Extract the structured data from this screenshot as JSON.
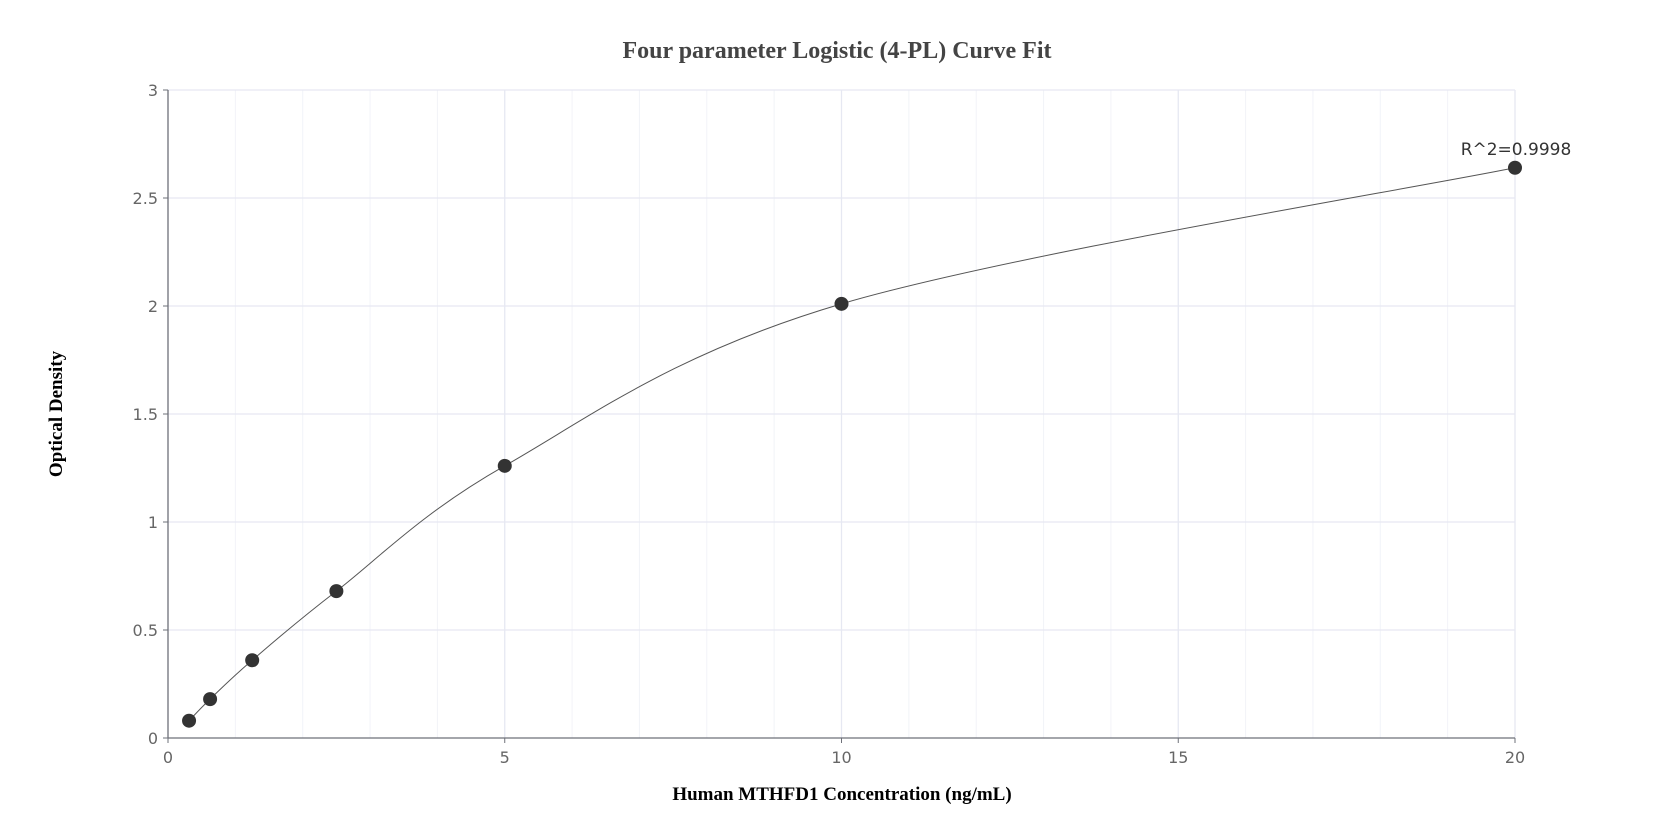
{
  "chart_data": {
    "type": "scatter",
    "title": "Four parameter Logistic (4-PL) Curve Fit",
    "xlabel": "Human MTHFD1 Concentration (ng/mL)",
    "ylabel": "Optical Density",
    "xlim": [
      0,
      20
    ],
    "ylim": [
      0,
      3
    ],
    "xticks": [
      0,
      5,
      10,
      15,
      20
    ],
    "xtick_labels": [
      "0",
      "5",
      "10",
      "15",
      "20"
    ],
    "yticks": [
      0,
      0.5,
      1,
      1.5,
      2,
      2.5,
      3
    ],
    "ytick_labels": [
      "0",
      "0.5",
      "1",
      "1.5",
      "2",
      "2.5",
      "3"
    ],
    "grid": true,
    "series": [
      {
        "name": "Standards",
        "x": [
          0.3125,
          0.625,
          1.25,
          2.5,
          5,
          10,
          20
        ],
        "y": [
          0.08,
          0.18,
          0.36,
          0.68,
          1.26,
          2.01,
          2.64
        ]
      }
    ],
    "annotation": "R^2=0.9998",
    "colors": {
      "point": "#333333",
      "line": "#555555",
      "grid": "#e6e8f2",
      "axis": "#6e7079"
    }
  }
}
